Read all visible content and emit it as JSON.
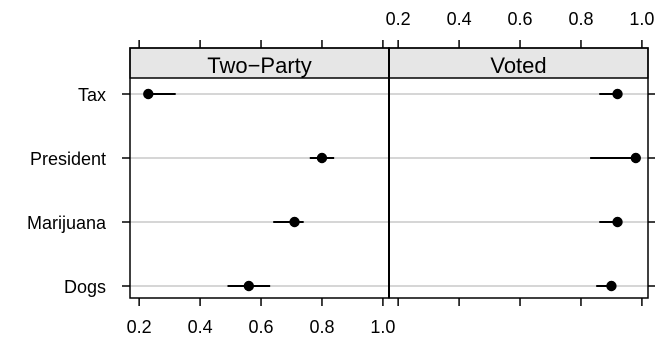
{
  "chart_data": {
    "type": "scatter",
    "title": "",
    "xlabel": "",
    "ylabel": "",
    "xlim": [
      0.17,
      1.02
    ],
    "xticks": [
      0.2,
      0.4,
      0.6,
      0.8,
      1.0
    ],
    "xtick_labels": [
      "0.2",
      "0.4",
      "0.6",
      "0.8",
      "1.0"
    ],
    "categories": [
      "Tax",
      "President",
      "Marijuana",
      "Dogs"
    ],
    "grid": true,
    "panels": [
      {
        "strip_label": "Two−Party",
        "points": [
          {
            "category": "Tax",
            "estimate": 0.23,
            "lower": 0.23,
            "upper": 0.32
          },
          {
            "category": "President",
            "estimate": 0.8,
            "lower": 0.76,
            "upper": 0.84
          },
          {
            "category": "Marijuana",
            "estimate": 0.71,
            "lower": 0.64,
            "upper": 0.74
          },
          {
            "category": "Dogs",
            "estimate": 0.56,
            "lower": 0.49,
            "upper": 0.63
          }
        ]
      },
      {
        "strip_label": "Voted",
        "points": [
          {
            "category": "Tax",
            "estimate": 0.92,
            "lower": 0.86,
            "upper": 0.92
          },
          {
            "category": "President",
            "estimate": 0.98,
            "lower": 0.83,
            "upper": 0.98
          },
          {
            "category": "Marijuana",
            "estimate": 0.92,
            "lower": 0.86,
            "upper": 0.92
          },
          {
            "category": "Dogs",
            "estimate": 0.9,
            "lower": 0.85,
            "upper": 0.9
          }
        ]
      }
    ]
  }
}
